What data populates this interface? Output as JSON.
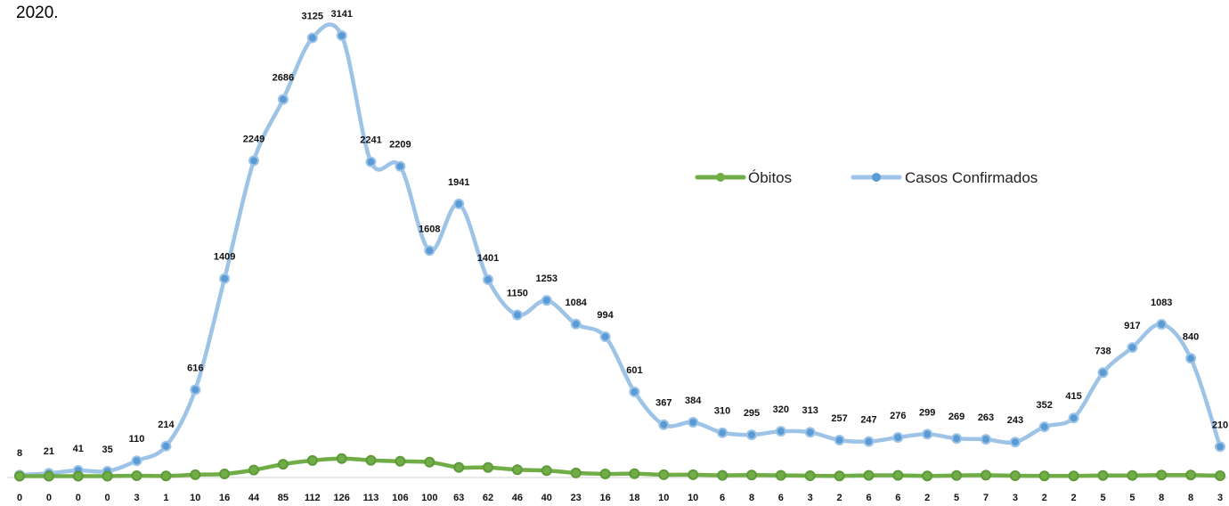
{
  "header": {
    "title": "2020."
  },
  "chart_data": {
    "type": "line",
    "series": [
      {
        "name": "Óbitos",
        "color": "#70AD47",
        "values": [
          0,
          0,
          0,
          0,
          3,
          1,
          10,
          16,
          44,
          85,
          112,
          126,
          113,
          106,
          100,
          63,
          62,
          46,
          40,
          23,
          16,
          18,
          10,
          10,
          6,
          8,
          6,
          3,
          2,
          6,
          6,
          2,
          5,
          7,
          3,
          2,
          2,
          5,
          5,
          8,
          8,
          3
        ]
      },
      {
        "name": "Casos Confirmados",
        "color": "#9DC3E6",
        "values": [
          8,
          21,
          41,
          35,
          110,
          214,
          616,
          1409,
          2249,
          2686,
          3125,
          3141,
          2241,
          2209,
          1608,
          1941,
          1401,
          1150,
          1253,
          1084,
          994,
          601,
          367,
          384,
          310,
          295,
          320,
          313,
          257,
          247,
          276,
          299,
          269,
          263,
          243,
          352,
          415,
          738,
          917,
          1083,
          840,
          210
        ]
      }
    ],
    "legend": {
      "position": "top-right",
      "entries": [
        "Óbitos",
        "Casos Confirmados"
      ]
    },
    "grid": false
  }
}
